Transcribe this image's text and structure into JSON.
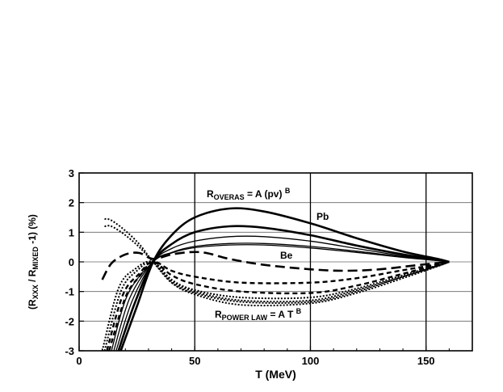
{
  "chart_data": {
    "type": "line",
    "xlabel": "T  (MeV)",
    "ylabel": {
      "open": "(R",
      "sub1": "XXX",
      "mid": " / R",
      "sub2": "MIXED",
      "close": " -1)  (%)"
    },
    "xlim": [
      0,
      170
    ],
    "ylim": [
      -3,
      3
    ],
    "xticks": [
      0,
      50,
      100,
      150
    ],
    "yticks": [
      -3,
      -2,
      -1,
      0,
      1,
      2,
      3
    ],
    "grid": {
      "vertical_at": [
        50,
        100,
        150
      ],
      "horizontal": true
    },
    "annotations": {
      "overas": {
        "base": "R",
        "sub": "OVERAS",
        "expr": " = A (pv) ",
        "sup": "B"
      },
      "power": {
        "base": "R",
        "sub": "POWER LAW",
        "expr": " = A T ",
        "sup": "B"
      },
      "pb": "Pb",
      "be": "Be"
    },
    "series": [
      {
        "style": "solid-thick",
        "points": [
          [
            18,
            -3
          ],
          [
            25,
            -1.5
          ],
          [
            32,
            0
          ],
          [
            40,
            0.9
          ],
          [
            50,
            1.5
          ],
          [
            65,
            1.8
          ],
          [
            80,
            1.7
          ],
          [
            100,
            1.3
          ],
          [
            120,
            0.8
          ],
          [
            140,
            0.35
          ],
          [
            155,
            0.1
          ],
          [
            160,
            0
          ]
        ]
      },
      {
        "style": "solid-thick",
        "points": [
          [
            17,
            -3
          ],
          [
            24,
            -1.4
          ],
          [
            32,
            0
          ],
          [
            40,
            0.6
          ],
          [
            50,
            1.0
          ],
          [
            65,
            1.2
          ],
          [
            80,
            1.15
          ],
          [
            100,
            0.9
          ],
          [
            120,
            0.55
          ],
          [
            140,
            0.25
          ],
          [
            155,
            0.07
          ],
          [
            160,
            0
          ]
        ]
      },
      {
        "style": "solid",
        "points": [
          [
            16,
            -3
          ],
          [
            23,
            -1.3
          ],
          [
            32,
            0
          ],
          [
            40,
            0.45
          ],
          [
            50,
            0.7
          ],
          [
            65,
            0.85
          ],
          [
            80,
            0.85
          ],
          [
            100,
            0.7
          ],
          [
            120,
            0.45
          ],
          [
            140,
            0.2
          ],
          [
            155,
            0.05
          ],
          [
            160,
            0
          ]
        ]
      },
      {
        "style": "solid",
        "points": [
          [
            15,
            -3
          ],
          [
            22,
            -1.2
          ],
          [
            32,
            0
          ],
          [
            40,
            0.32
          ],
          [
            50,
            0.52
          ],
          [
            65,
            0.62
          ],
          [
            80,
            0.62
          ],
          [
            100,
            0.52
          ],
          [
            120,
            0.36
          ],
          [
            140,
            0.17
          ],
          [
            155,
            0.05
          ],
          [
            160,
            0
          ]
        ]
      },
      {
        "style": "solid",
        "points": [
          [
            14,
            -3
          ],
          [
            21,
            -1.1
          ],
          [
            32,
            0
          ],
          [
            40,
            0.3
          ],
          [
            50,
            0.48
          ],
          [
            65,
            0.57
          ],
          [
            80,
            0.57
          ],
          [
            100,
            0.47
          ],
          [
            120,
            0.32
          ],
          [
            140,
            0.15
          ],
          [
            155,
            0.04
          ],
          [
            160,
            0
          ]
        ]
      },
      {
        "style": "long-dash",
        "points": [
          [
            10,
            -0.6
          ],
          [
            14,
            -0.05
          ],
          [
            20,
            0.25
          ],
          [
            26,
            0.3
          ],
          [
            32,
            0.1
          ],
          [
            40,
            0.25
          ],
          [
            48,
            0.33
          ],
          [
            55,
            0.3
          ],
          [
            65,
            0.1
          ],
          [
            80,
            -0.1
          ],
          [
            100,
            -0.25
          ],
          [
            115,
            -0.3
          ],
          [
            130,
            -0.25
          ],
          [
            145,
            -0.12
          ],
          [
            155,
            -0.04
          ],
          [
            160,
            0
          ]
        ]
      },
      {
        "style": "dash",
        "points": [
          [
            13,
            -3
          ],
          [
            20,
            -1.2
          ],
          [
            26,
            -0.5
          ],
          [
            32,
            0
          ],
          [
            40,
            -0.3
          ],
          [
            50,
            -0.5
          ],
          [
            70,
            -0.7
          ],
          [
            100,
            -0.7
          ],
          [
            120,
            -0.55
          ],
          [
            140,
            -0.28
          ],
          [
            155,
            -0.08
          ],
          [
            160,
            0
          ]
        ]
      },
      {
        "style": "dash",
        "points": [
          [
            12,
            -3
          ],
          [
            19,
            -1.1
          ],
          [
            26,
            -0.4
          ],
          [
            32,
            0
          ],
          [
            40,
            -0.45
          ],
          [
            50,
            -0.75
          ],
          [
            70,
            -1.0
          ],
          [
            100,
            -1.05
          ],
          [
            120,
            -0.8
          ],
          [
            140,
            -0.4
          ],
          [
            155,
            -0.1
          ],
          [
            160,
            0
          ]
        ]
      },
      {
        "style": "dot",
        "points": [
          [
            11,
            -3
          ],
          [
            18,
            -1.0
          ],
          [
            25,
            -0.3
          ],
          [
            32,
            0
          ],
          [
            40,
            -0.6
          ],
          [
            50,
            -0.95
          ],
          [
            70,
            -1.2
          ],
          [
            100,
            -1.2
          ],
          [
            120,
            -0.9
          ],
          [
            140,
            -0.45
          ],
          [
            155,
            -0.12
          ],
          [
            160,
            0
          ]
        ]
      },
      {
        "style": "dot",
        "points": [
          [
            10,
            -3
          ],
          [
            17,
            -0.9
          ],
          [
            24,
            -0.25
          ],
          [
            32,
            0
          ],
          [
            40,
            -0.7
          ],
          [
            50,
            -1.05
          ],
          [
            70,
            -1.35
          ],
          [
            100,
            -1.35
          ],
          [
            120,
            -1.0
          ],
          [
            140,
            -0.5
          ],
          [
            155,
            -0.14
          ],
          [
            160,
            0
          ]
        ]
      },
      {
        "style": "dot",
        "points": [
          [
            11,
            1.45
          ],
          [
            14,
            1.4
          ],
          [
            20,
            1.05
          ],
          [
            26,
            0.6
          ],
          [
            32,
            0
          ],
          [
            40,
            -0.7
          ],
          [
            50,
            -1.1
          ],
          [
            70,
            -1.45
          ],
          [
            100,
            -1.4
          ],
          [
            120,
            -1.05
          ],
          [
            140,
            -0.55
          ],
          [
            155,
            -0.15
          ],
          [
            160,
            0
          ]
        ]
      },
      {
        "style": "dot",
        "points": [
          [
            11,
            1.2
          ],
          [
            14,
            1.2
          ],
          [
            20,
            0.9
          ],
          [
            26,
            0.5
          ],
          [
            32,
            0
          ],
          [
            40,
            -0.65
          ],
          [
            50,
            -1.0
          ],
          [
            70,
            -1.3
          ],
          [
            100,
            -1.3
          ],
          [
            120,
            -0.95
          ],
          [
            140,
            -0.5
          ],
          [
            155,
            -0.13
          ],
          [
            160,
            0
          ]
        ]
      }
    ]
  }
}
